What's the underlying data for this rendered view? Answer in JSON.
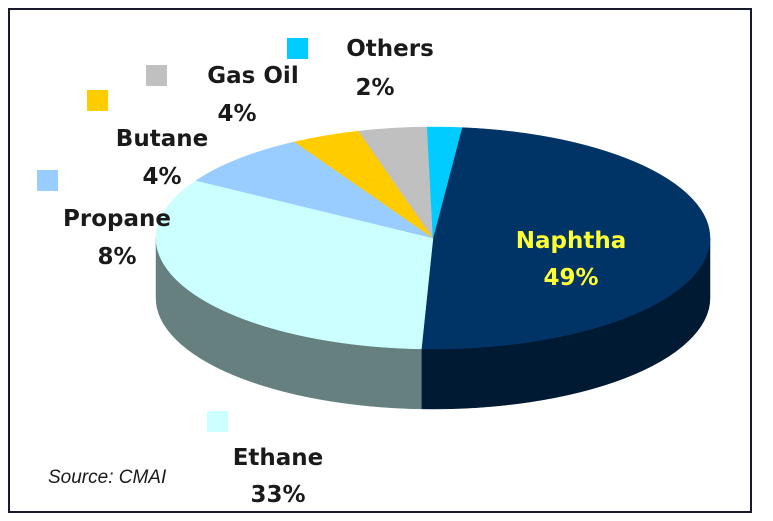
{
  "chart_data": {
    "type": "pie",
    "title": "",
    "slices": [
      {
        "name": "Naphtha",
        "value": 49,
        "label": "49%",
        "color": "#003366",
        "side_color": "#001a33"
      },
      {
        "name": "Ethane",
        "value": 33,
        "label": "33%",
        "color": "#ccffff",
        "side_color": "#668080"
      },
      {
        "name": "Propane",
        "value": 8,
        "label": "8%",
        "color": "#99ccff",
        "side_color": "#4d6680"
      },
      {
        "name": "Butane",
        "value": 4,
        "label": "4%",
        "color": "#ffcc00",
        "side_color": "#806600"
      },
      {
        "name": "Gas Oil",
        "value": 4,
        "label": "4%",
        "color": "#c0c0c0",
        "side_color": "#606060"
      },
      {
        "name": "Others",
        "value": 2,
        "label": "2%",
        "color": "#00ccff",
        "side_color": "#006680"
      }
    ],
    "source": "Source: CMAI",
    "style": "3d"
  }
}
